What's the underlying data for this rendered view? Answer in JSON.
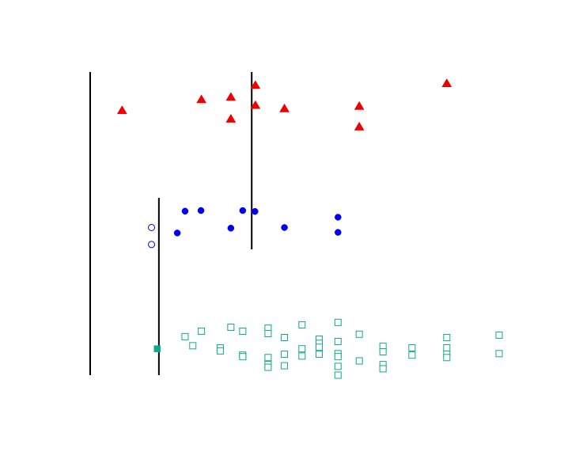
{
  "chart_data": {
    "type": "scatter",
    "title": "",
    "xlabel": "",
    "ylabel": "",
    "grid": false,
    "xlim": [
      0,
      1
    ],
    "ylim": [
      0,
      1
    ],
    "colors": {
      "triangle": "#ee0000",
      "circle": "#0000ee",
      "square": "#11aa88",
      "line": "#000000"
    },
    "reference_lines": [
      {
        "x": 0.0,
        "y_range": [
          0.0,
          1.0
        ]
      },
      {
        "x": 0.395,
        "y_range": [
          0.415,
          1.0
        ]
      },
      {
        "x": 0.168,
        "y_range": [
          0.0,
          0.585
        ]
      }
    ],
    "series": [
      {
        "marker": "triangle",
        "filled": true,
        "points": [
          [
            0.078,
            0.873
          ],
          [
            0.272,
            0.909
          ],
          [
            0.344,
            0.917
          ],
          [
            0.404,
            0.956
          ],
          [
            0.404,
            0.89
          ],
          [
            0.475,
            0.879
          ],
          [
            0.344,
            0.845
          ],
          [
            0.658,
            0.887
          ],
          [
            0.658,
            0.819
          ],
          [
            0.872,
            0.962
          ]
        ]
      },
      {
        "marker": "circle",
        "filled": true,
        "points": [
          [
            0.232,
            0.541
          ],
          [
            0.271,
            0.543
          ],
          [
            0.373,
            0.543
          ],
          [
            0.403,
            0.54
          ],
          [
            0.606,
            0.521
          ],
          [
            0.213,
            0.469
          ],
          [
            0.344,
            0.485
          ],
          [
            0.475,
            0.487
          ],
          [
            0.606,
            0.471
          ]
        ]
      },
      {
        "marker": "circle",
        "filled": false,
        "points": [
          [
            0.15,
            0.487
          ],
          [
            0.15,
            0.431
          ]
        ]
      },
      {
        "marker": "square",
        "filled": true,
        "points": [
          [
            0.164,
            0.087
          ]
        ]
      },
      {
        "marker": "square",
        "filled": false,
        "points": [
          [
            0.232,
            0.127
          ],
          [
            0.251,
            0.097
          ],
          [
            0.272,
            0.145
          ],
          [
            0.318,
            0.09
          ],
          [
            0.318,
            0.08
          ],
          [
            0.344,
            0.158
          ],
          [
            0.373,
            0.145
          ],
          [
            0.373,
            0.066
          ],
          [
            0.373,
            0.061
          ],
          [
            0.435,
            0.155
          ],
          [
            0.435,
            0.137
          ],
          [
            0.435,
            0.058
          ],
          [
            0.435,
            0.035
          ],
          [
            0.435,
            0.026
          ],
          [
            0.475,
            0.124
          ],
          [
            0.475,
            0.069
          ],
          [
            0.475,
            0.031
          ],
          [
            0.518,
            0.166
          ],
          [
            0.518,
            0.087
          ],
          [
            0.518,
            0.063
          ],
          [
            0.56,
            0.119
          ],
          [
            0.56,
            0.105
          ],
          [
            0.56,
            0.092
          ],
          [
            0.56,
            0.069
          ],
          [
            0.606,
            0.174
          ],
          [
            0.606,
            0.111
          ],
          [
            0.606,
            0.071
          ],
          [
            0.606,
            0.061
          ],
          [
            0.606,
            0.029
          ],
          [
            0.606,
            0.0
          ],
          [
            0.658,
            0.135
          ],
          [
            0.658,
            0.047
          ],
          [
            0.716,
            0.095
          ],
          [
            0.716,
            0.077
          ],
          [
            0.716,
            0.035
          ],
          [
            0.716,
            0.021
          ],
          [
            0.787,
            0.09
          ],
          [
            0.787,
            0.066
          ],
          [
            0.872,
            0.124
          ],
          [
            0.872,
            0.09
          ],
          [
            0.872,
            0.069
          ],
          [
            0.872,
            0.058
          ],
          [
            1.0,
            0.132
          ],
          [
            1.0,
            0.071
          ]
        ]
      }
    ]
  }
}
